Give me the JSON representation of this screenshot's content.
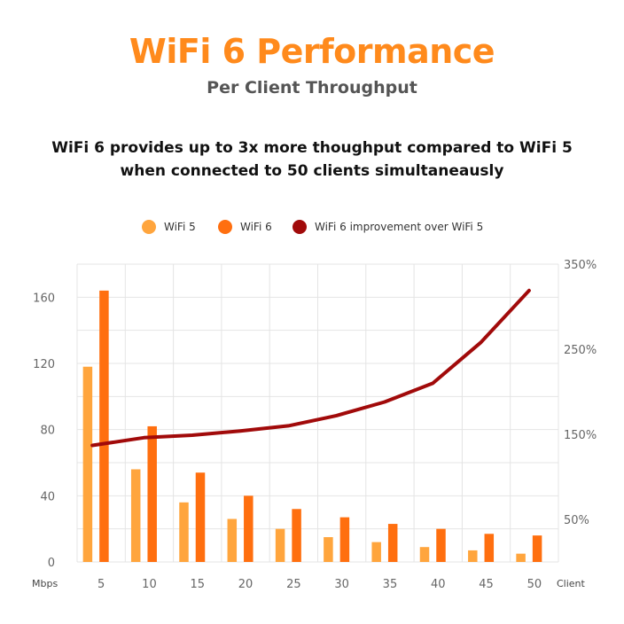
{
  "chart_data": {
    "type": "bar",
    "title": "WiFi 6 Performance",
    "subtitle": "Per Client Throughput",
    "headline_line1": "WiFi 6 provides up to 3x more thoughput compared to WiFi 5",
    "headline_line2": "when connected to 50  clients simultaneausly",
    "xlabel": "Client",
    "ylabel": "Mbps",
    "categories": [
      "5",
      "10",
      "15",
      "20",
      "25",
      "30",
      "35",
      "40",
      "45",
      "50"
    ],
    "ylim": [
      0,
      180
    ],
    "yticks": [
      "0",
      "40",
      "80",
      "120",
      "160"
    ],
    "y2lim": [
      0,
      350
    ],
    "y2ticks": [
      "50%",
      "150%",
      "250%",
      "350%"
    ],
    "grid": true,
    "legend_position": "top",
    "series": [
      {
        "name": "WiFi 5",
        "kind": "bar",
        "color": "#FFA53D",
        "values": [
          118,
          56,
          36,
          26,
          20,
          15,
          12,
          9,
          7,
          5
        ]
      },
      {
        "name": "WiFi 6",
        "kind": "bar",
        "color": "#FF6F0F",
        "values": [
          164,
          82,
          54,
          40,
          32,
          27,
          23,
          20,
          17,
          16
        ]
      },
      {
        "name": "WiFi 6 improvement over WiFi 5",
        "kind": "line",
        "axis": "right",
        "color": "#A10A0A",
        "values": [
          137,
          146,
          149,
          154,
          160,
          172,
          188,
          210,
          258,
          319
        ]
      }
    ]
  },
  "colors": {
    "title": "#FF8A1C",
    "subtitle": "#555555"
  }
}
